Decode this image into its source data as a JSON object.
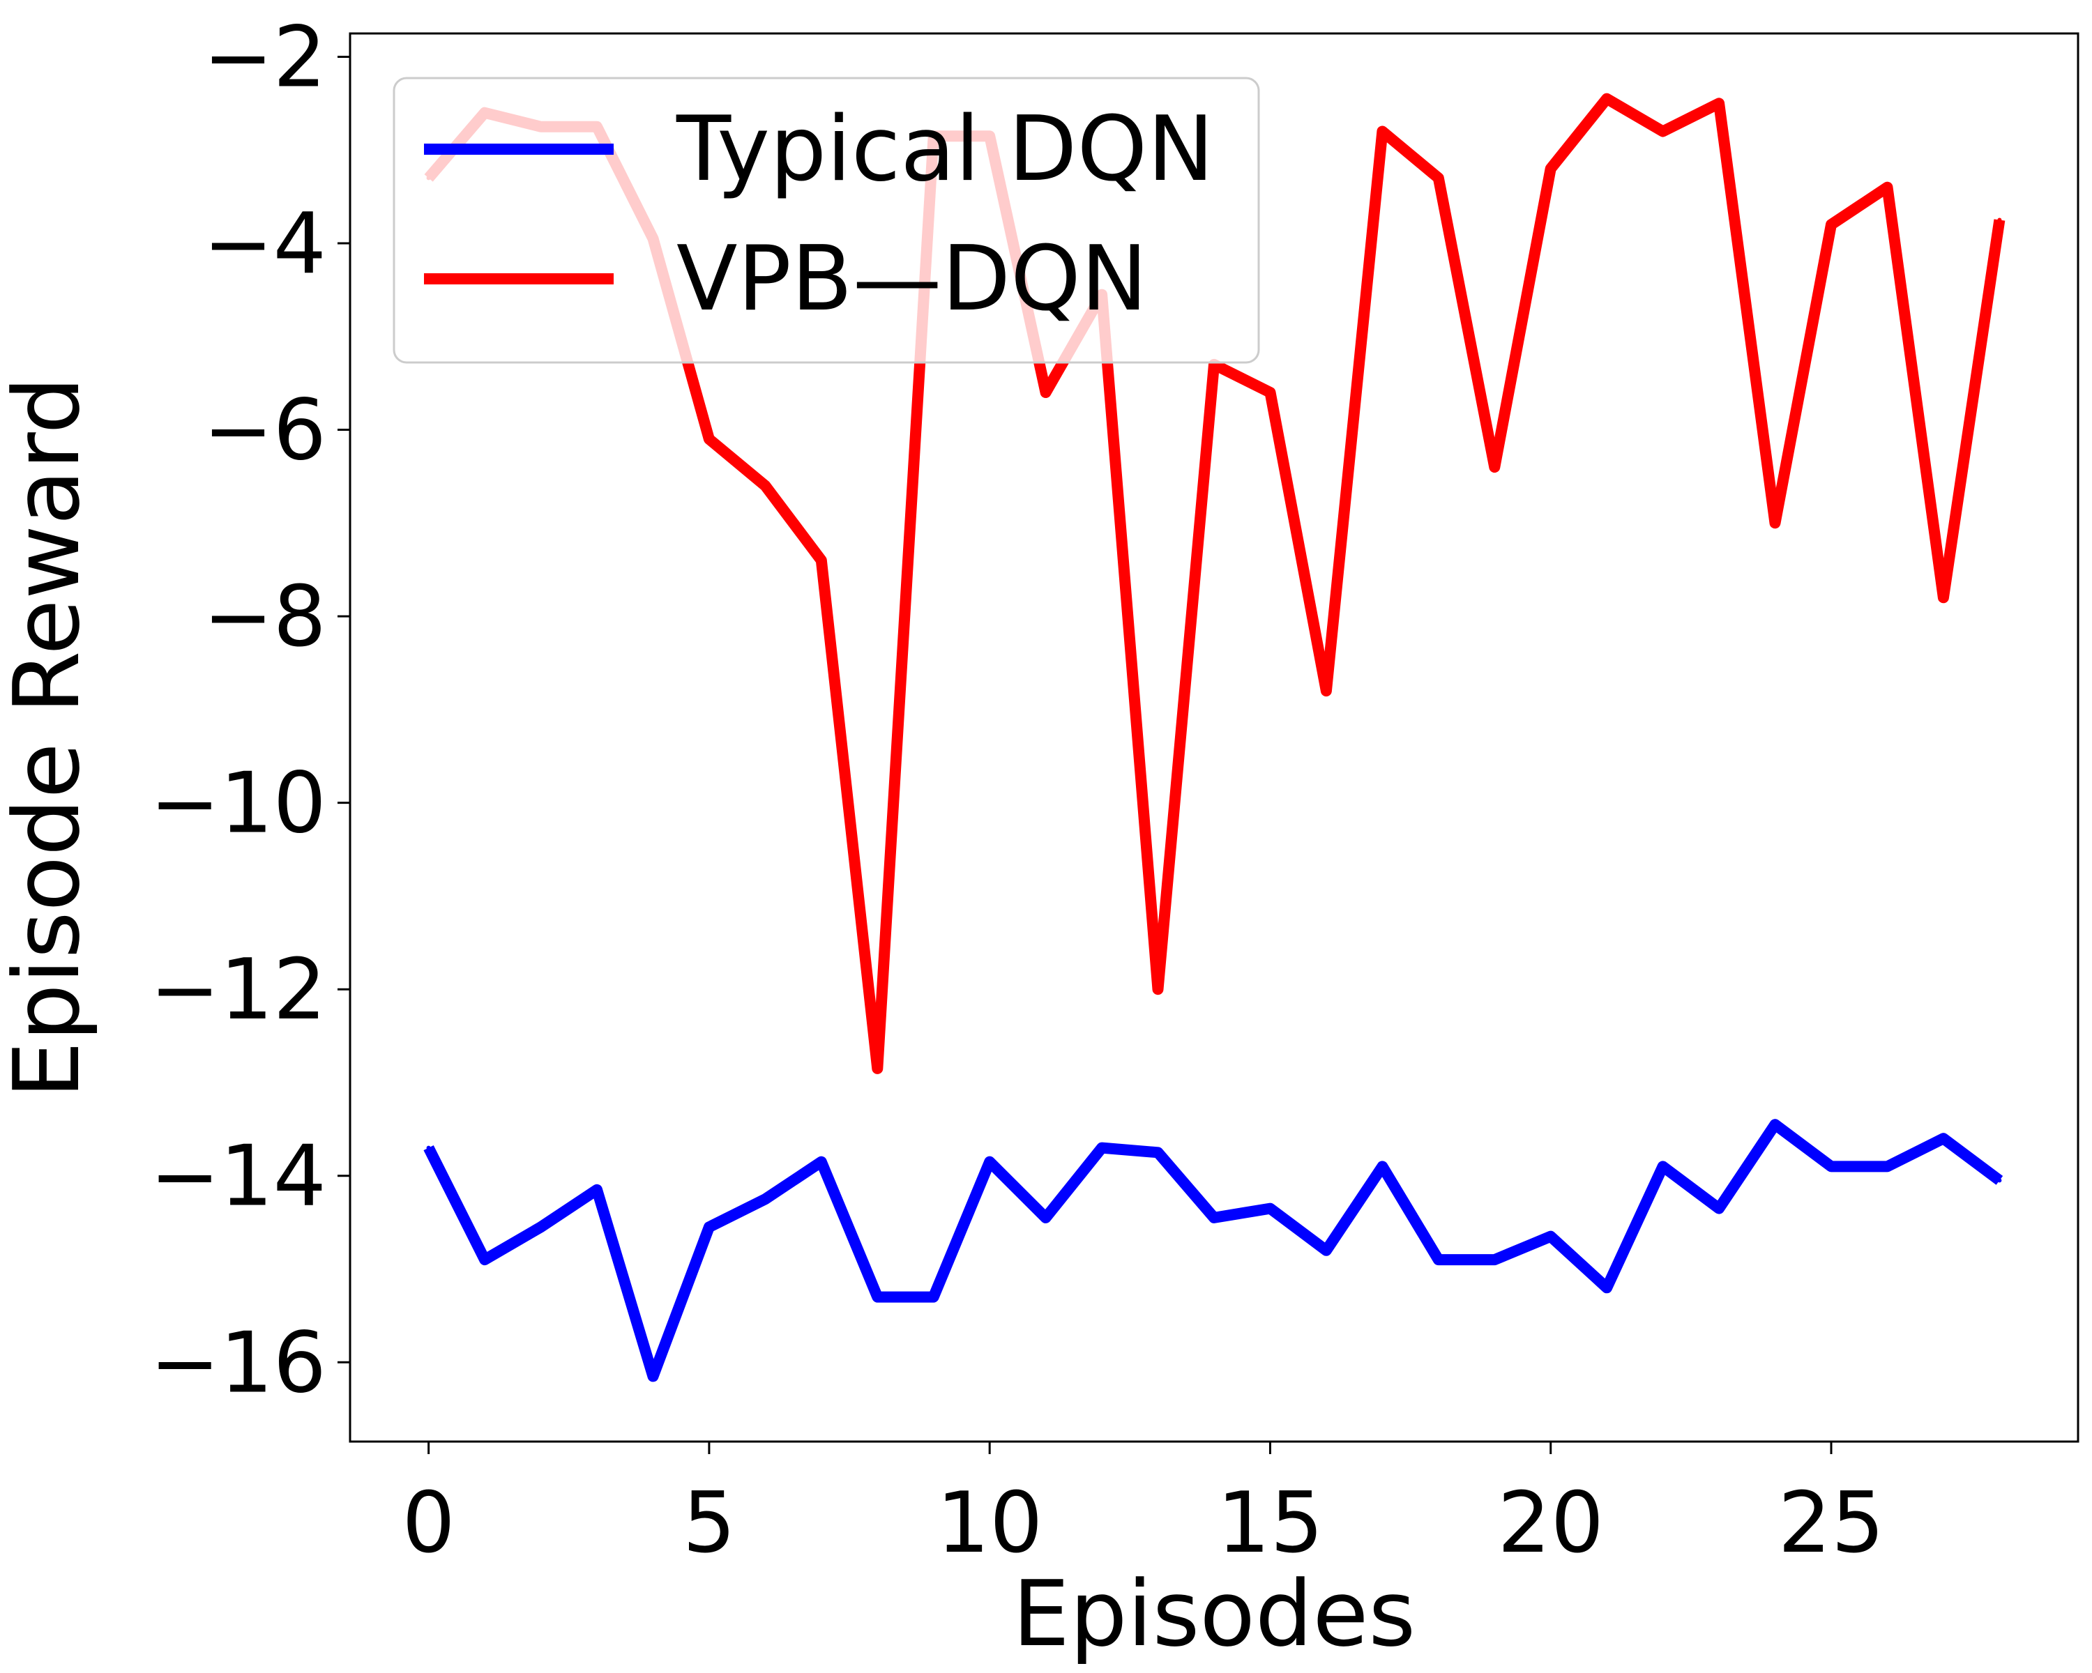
{
  "chart_data": {
    "type": "line",
    "title": "",
    "xlabel": "Episodes",
    "ylabel": "Episode Reward",
    "xlim": [
      -1.4,
      29.4
    ],
    "ylim": [
      -16.85,
      -1.75
    ],
    "xticks": [
      0,
      5,
      10,
      15,
      20,
      25
    ],
    "yticks": [
      -16,
      -14,
      -12,
      -10,
      -8,
      -6,
      -4,
      -2
    ],
    "ytick_labels": [
      "−16",
      "−14",
      "−12",
      "−10",
      "−8",
      "−6",
      "−4",
      "−2"
    ],
    "grid": false,
    "legend": "top-left",
    "x": [
      0,
      1,
      2,
      3,
      4,
      5,
      6,
      7,
      8,
      9,
      10,
      11,
      12,
      13,
      14,
      15,
      16,
      17,
      18,
      19,
      20,
      21,
      22,
      23,
      24,
      25,
      26,
      27,
      28
    ],
    "series": [
      {
        "name": "Typical DQN",
        "color": "#0000ff",
        "values": [
          -13.7,
          -14.9,
          -14.55,
          -14.15,
          -16.15,
          -14.55,
          -14.25,
          -13.85,
          -15.3,
          -15.3,
          -13.85,
          -14.45,
          -13.7,
          -13.75,
          -14.45,
          -14.35,
          -14.8,
          -13.9,
          -14.9,
          -14.9,
          -14.65,
          -15.2,
          -13.9,
          -14.35,
          -13.45,
          -13.9,
          -13.9,
          -13.6,
          -14.05
        ]
      },
      {
        "name": "VPB—DQN",
        "color": "#ff0000",
        "values": [
          -3.3,
          -2.6,
          -2.75,
          -2.75,
          -3.95,
          -6.1,
          -6.6,
          -7.4,
          -12.85,
          -2.85,
          -2.85,
          -5.6,
          -4.55,
          -12.0,
          -5.3,
          -5.6,
          -8.8,
          -2.8,
          -3.3,
          -6.4,
          -3.2,
          -2.45,
          -2.8,
          -2.5,
          -7.0,
          -3.8,
          -3.4,
          -7.8,
          -3.75
        ]
      }
    ]
  }
}
